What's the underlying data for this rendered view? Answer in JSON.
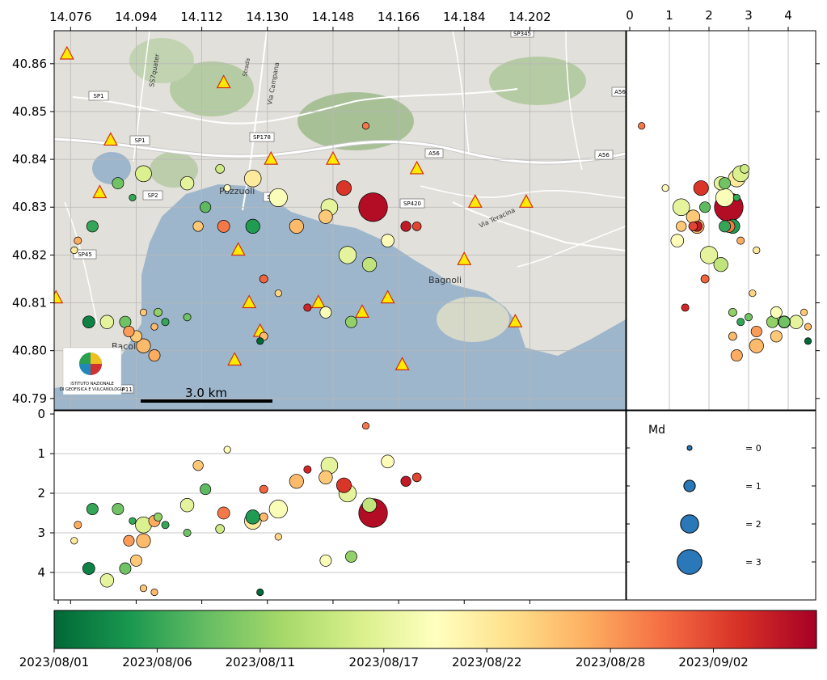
{
  "map": {
    "top_ticks": [
      "14.076",
      "14.094",
      "14.112",
      "14.130",
      "14.148",
      "14.166",
      "14.184",
      "14.202"
    ],
    "left_ticks": [
      "40.86",
      "40.85",
      "40.84",
      "40.83",
      "40.82",
      "40.81",
      "40.80",
      "40.79"
    ],
    "scale_bar_label": "3.0 km",
    "place_labels": [
      "Pozzuoli",
      "Bagnoli",
      "Bacoli",
      "Via Teracina",
      "Via Campana",
      "SS7quater",
      "Strada"
    ],
    "road_labels": [
      "SP1",
      "SP1",
      "SP2",
      "SP45",
      "SP178",
      "SP47",
      "SP420",
      "A56",
      "A56",
      "A56",
      "SP345",
      "SP11"
    ],
    "logo_text": [
      "ISTITUTO NAZIONALE",
      "DI GEOFISICA E VULCANOLOGIA"
    ],
    "colors": {
      "sea": "#9db6cc",
      "land": "#e2e0da",
      "forest": "#aac39a",
      "road": "#ffffff",
      "stations": "#ffea00"
    }
  },
  "depth_lon": {
    "ticks": [
      "0",
      "1",
      "2",
      "3",
      "4"
    ]
  },
  "depth_lat": {
    "ticks": [
      "0",
      "1",
      "2",
      "3",
      "4"
    ]
  },
  "legend": {
    "title": "Md",
    "items": [
      {
        "label": "= 0",
        "md": 0
      },
      {
        "label": "= 1",
        "md": 1
      },
      {
        "label": "= 2",
        "md": 2
      },
      {
        "label": "= 3",
        "md": 3
      }
    ],
    "marker_color": "#2a78b8"
  },
  "colorbar": {
    "ticks": [
      "2023/08/01",
      "2023/08/06",
      "2023/08/11",
      "2023/08/17",
      "2023/08/22",
      "2023/08/28",
      "2023/09/02"
    ],
    "colors": [
      "#006837",
      "#1a9850",
      "#66bd63",
      "#a6d96a",
      "#d9ef8b",
      "#ffffbf",
      "#fee08b",
      "#fdae61",
      "#f46d43",
      "#d73027",
      "#a50026"
    ]
  },
  "stations": [
    [
      14.075,
      40.862
    ],
    [
      14.118,
      40.856
    ],
    [
      14.087,
      40.844
    ],
    [
      14.084,
      40.833
    ],
    [
      14.131,
      40.84
    ],
    [
      14.148,
      40.84
    ],
    [
      14.171,
      40.838
    ],
    [
      14.187,
      40.831
    ],
    [
      14.201,
      40.831
    ],
    [
      14.122,
      40.821
    ],
    [
      14.156,
      40.808
    ],
    [
      14.163,
      40.811
    ],
    [
      14.184,
      40.819
    ],
    [
      14.072,
      40.811
    ],
    [
      14.125,
      40.81
    ],
    [
      14.144,
      40.81
    ],
    [
      14.128,
      40.804
    ],
    [
      14.121,
      40.798
    ],
    [
      14.167,
      40.797
    ],
    [
      14.198,
      40.806
    ]
  ],
  "events": [
    {
      "lon": 14.159,
      "lat": 40.83,
      "depth": 2.5,
      "md": 3.6,
      "date": "2023/09/06"
    },
    {
      "lon": 14.126,
      "lat": 40.836,
      "depth": 2.7,
      "md": 1.8,
      "date": "2023/08/22"
    },
    {
      "lon": 14.133,
      "lat": 40.832,
      "depth": 2.4,
      "md": 2.0,
      "date": "2023/08/19"
    },
    {
      "lon": 14.147,
      "lat": 40.83,
      "depth": 1.3,
      "md": 1.8,
      "date": "2023/08/17"
    },
    {
      "lon": 14.152,
      "lat": 40.82,
      "depth": 2.0,
      "md": 1.9,
      "date": "2023/08/17"
    },
    {
      "lon": 14.096,
      "lat": 40.837,
      "depth": 2.8,
      "md": 1.7,
      "date": "2023/08/16"
    },
    {
      "lon": 14.089,
      "lat": 40.835,
      "depth": 2.4,
      "md": 1.0,
      "date": "2023/08/09"
    },
    {
      "lon": 14.093,
      "lat": 40.832,
      "depth": 2.7,
      "md": 0.3,
      "date": "2023/08/06"
    },
    {
      "lon": 14.108,
      "lat": 40.835,
      "depth": 2.3,
      "md": 1.3,
      "date": "2023/08/17"
    },
    {
      "lon": 14.117,
      "lat": 40.838,
      "depth": 2.9,
      "md": 0.6,
      "date": "2023/08/15"
    },
    {
      "lon": 14.113,
      "lat": 40.83,
      "depth": 1.9,
      "md": 0.9,
      "date": "2023/08/08"
    },
    {
      "lon": 14.111,
      "lat": 40.826,
      "depth": 1.3,
      "md": 0.8,
      "date": "2023/08/25"
    },
    {
      "lon": 14.118,
      "lat": 40.826,
      "depth": 2.5,
      "md": 1.1,
      "date": "2023/08/30"
    },
    {
      "lon": 14.126,
      "lat": 40.826,
      "depth": 2.6,
      "md": 1.4,
      "date": "2023/08/05"
    },
    {
      "lon": 14.138,
      "lat": 40.826,
      "depth": 1.7,
      "md": 1.4,
      "date": "2023/08/26"
    },
    {
      "lon": 14.163,
      "lat": 40.823,
      "depth": 1.2,
      "md": 1.2,
      "date": "2023/08/20"
    },
    {
      "lon": 14.158,
      "lat": 40.818,
      "depth": 2.3,
      "md": 1.4,
      "date": "2023/08/14"
    },
    {
      "lon": 14.146,
      "lat": 40.828,
      "depth": 1.6,
      "md": 1.3,
      "date": "2023/08/25"
    },
    {
      "lon": 14.151,
      "lat": 40.834,
      "depth": 1.8,
      "md": 1.5,
      "date": "2023/09/03"
    },
    {
      "lon": 14.168,
      "lat": 40.826,
      "depth": 1.7,
      "md": 0.8,
      "date": "2023/09/05"
    },
    {
      "lon": 14.082,
      "lat": 40.826,
      "depth": 2.4,
      "md": 1.0,
      "date": "2023/08/06"
    },
    {
      "lon": 14.078,
      "lat": 40.823,
      "depth": 2.8,
      "md": 0.4,
      "date": "2023/08/27"
    },
    {
      "lon": 14.081,
      "lat": 40.806,
      "depth": 3.9,
      "md": 1.1,
      "date": "2023/08/03"
    },
    {
      "lon": 14.086,
      "lat": 40.806,
      "depth": 4.2,
      "md": 1.3,
      "date": "2023/08/17"
    },
    {
      "lon": 14.091,
      "lat": 40.806,
      "depth": 3.9,
      "md": 1.0,
      "date": "2023/08/09"
    },
    {
      "lon": 14.094,
      "lat": 40.803,
      "depth": 3.7,
      "md": 1.0,
      "date": "2023/08/25"
    },
    {
      "lon": 14.096,
      "lat": 40.801,
      "depth": 3.2,
      "md": 1.4,
      "date": "2023/08/26"
    },
    {
      "lon": 14.099,
      "lat": 40.799,
      "depth": 2.7,
      "md": 1.0,
      "date": "2023/08/27"
    },
    {
      "lon": 14.092,
      "lat": 40.804,
      "depth": 3.2,
      "md": 0.9,
      "date": "2023/08/28"
    },
    {
      "lon": 14.1,
      "lat": 40.808,
      "depth": 2.6,
      "md": 0.5,
      "date": "2023/08/11"
    },
    {
      "lon": 14.102,
      "lat": 40.806,
      "depth": 2.8,
      "md": 0.4,
      "date": "2023/08/06"
    },
    {
      "lon": 14.153,
      "lat": 40.806,
      "depth": 3.6,
      "md": 1.0,
      "date": "2023/08/11"
    },
    {
      "lon": 14.146,
      "lat": 40.808,
      "depth": 3.7,
      "md": 1.0,
      "date": "2023/08/19"
    },
    {
      "lon": 14.129,
      "lat": 40.803,
      "depth": 2.6,
      "md": 0.5,
      "date": "2023/08/26"
    },
    {
      "lon": 14.108,
      "lat": 40.807,
      "depth": 3.0,
      "md": 0.4,
      "date": "2023/08/09"
    },
    {
      "lon": 14.129,
      "lat": 40.815,
      "depth": 1.9,
      "md": 0.5,
      "date": "2023/08/31"
    },
    {
      "lon": 14.171,
      "lat": 40.826,
      "depth": 1.6,
      "md": 0.6,
      "date": "2023/09/02"
    },
    {
      "lon": 14.157,
      "lat": 40.847,
      "depth": 0.3,
      "md": 0.3,
      "date": "2023/08/30"
    },
    {
      "lon": 14.119,
      "lat": 40.834,
      "depth": 0.9,
      "md": 0.3,
      "date": "2023/08/20"
    },
    {
      "lon": 14.096,
      "lat": 40.808,
      "depth": 4.4,
      "md": 0.3,
      "date": "2023/08/25"
    },
    {
      "lon": 14.099,
      "lat": 40.805,
      "depth": 4.5,
      "md": 0.3,
      "date": "2023/08/26"
    },
    {
      "lon": 14.128,
      "lat": 40.802,
      "depth": 4.5,
      "md": 0.3,
      "date": "2023/08/01"
    },
    {
      "lon": 14.141,
      "lat": 40.809,
      "depth": 1.4,
      "md": 0.4,
      "date": "2023/09/04"
    },
    {
      "lon": 14.133,
      "lat": 40.812,
      "depth": 3.1,
      "md": 0.3,
      "date": "2023/08/24"
    },
    {
      "lon": 14.077,
      "lat": 40.821,
      "depth": 3.2,
      "md": 0.3,
      "date": "2023/08/22"
    }
  ]
}
